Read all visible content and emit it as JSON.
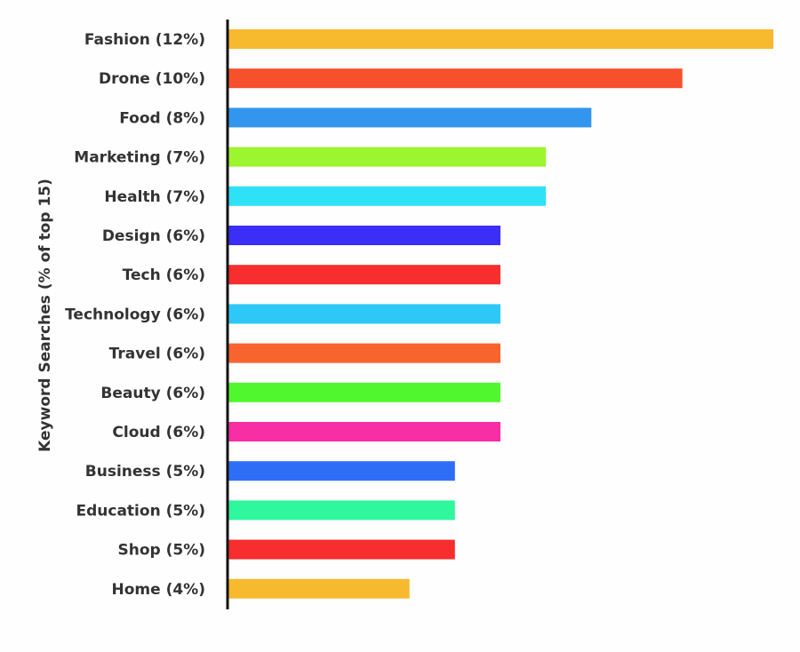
{
  "chart_data": {
    "type": "bar",
    "orientation": "horizontal",
    "ylabel": "Keyword Searches (% of top 15)",
    "xlabel": "",
    "title": "",
    "grid": false,
    "legend": "none",
    "categories": [
      "Fashion (12%)",
      "Drone (10%)",
      "Food (8%)",
      "Marketing (7%)",
      "Health (7%)",
      "Design (6%)",
      "Tech (6%)",
      "Technology (6%)",
      "Travel (6%)",
      "Beauty (6%)",
      "Cloud (6%)",
      "Business (5%)",
      "Education (5%)",
      "Shop (5%)",
      "Home (4%)"
    ],
    "values": [
      12,
      10,
      8,
      7,
      7,
      6,
      6,
      6,
      6,
      6,
      6,
      5,
      5,
      5,
      4
    ],
    "xlim": [
      0,
      12
    ],
    "colors": [
      "#f7b92e",
      "#f7502c",
      "#3296ee",
      "#9cf52e",
      "#2ee1f7",
      "#3a2ef7",
      "#f72e2e",
      "#2ec8f7",
      "#f7642e",
      "#50f72e",
      "#f72ea4",
      "#2e6ef7",
      "#2ef79e",
      "#f72e2e",
      "#f7b92e"
    ]
  }
}
